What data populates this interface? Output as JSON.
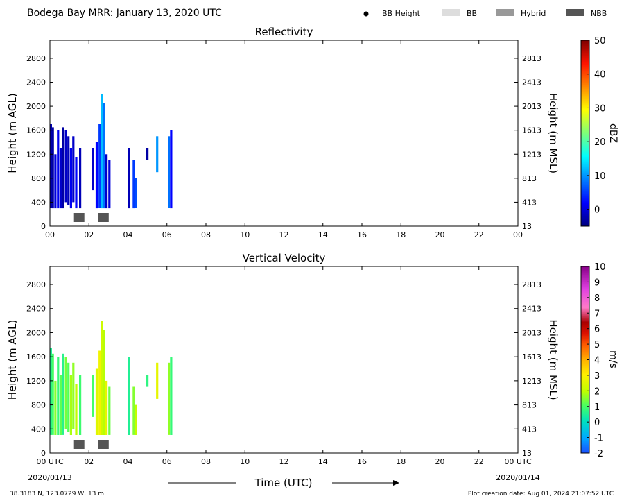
{
  "header": {
    "title": "Bodega Bay MRR:  January 13, 2020 UTC",
    "legend": [
      {
        "label": "BB Height",
        "kind": "dot",
        "color": "#000000"
      },
      {
        "label": "BB",
        "kind": "box",
        "color": "#dddddd"
      },
      {
        "label": "Hybrid",
        "kind": "box",
        "color": "#999999"
      },
      {
        "label": "NBB",
        "kind": "box",
        "color": "#555555"
      }
    ]
  },
  "footer": {
    "location": "38.3183 N, 123.0729 W, 13 m",
    "created": "Plot creation date: Aug 01, 2024 21:07:52 UTC",
    "xlabel": "Time (UTC)",
    "start_date": "2020/01/13",
    "end_date": "2020/01/14"
  },
  "chart_data": [
    {
      "type": "heatmap",
      "title": "Reflectivity",
      "xlabel": "",
      "ylabel": "Height (m AGL)",
      "ylabel_right": "Height (m MSL)",
      "xlim": [
        0,
        24
      ],
      "ylim": [
        0,
        3100
      ],
      "x_ticks": [
        "00",
        "02",
        "04",
        "06",
        "08",
        "10",
        "12",
        "14",
        "16",
        "18",
        "20",
        "22",
        "00"
      ],
      "y_ticks": [
        0,
        400,
        800,
        1200,
        1600,
        2000,
        2400,
        2800
      ],
      "y_ticks_right": [
        "13",
        "413",
        "813",
        "1213",
        "1613",
        "2013",
        "2413",
        "2813"
      ],
      "colorbar": {
        "label": "dBZ",
        "min": -5,
        "max": 50,
        "ticks": [
          0,
          10,
          20,
          30,
          40,
          50
        ]
      },
      "columns": [
        {
          "t": 0.05,
          "bottom": 300,
          "top": 1700,
          "value": -2
        },
        {
          "t": 0.15,
          "bottom": 300,
          "top": 1650,
          "value": -3
        },
        {
          "t": 0.28,
          "bottom": 300,
          "top": 1200,
          "value": 0
        },
        {
          "t": 0.42,
          "bottom": 300,
          "top": 1600,
          "value": 1
        },
        {
          "t": 0.55,
          "bottom": 300,
          "top": 1300,
          "value": -1
        },
        {
          "t": 0.68,
          "bottom": 300,
          "top": 1650,
          "value": -3
        },
        {
          "t": 0.82,
          "bottom": 400,
          "top": 1600,
          "value": -1
        },
        {
          "t": 0.95,
          "bottom": 350,
          "top": 1500,
          "value": -2
        },
        {
          "t": 1.08,
          "bottom": 300,
          "top": 1300,
          "value": 1
        },
        {
          "t": 1.2,
          "bottom": 400,
          "top": 1500,
          "value": -1
        },
        {
          "t": 1.35,
          "bottom": 300,
          "top": 1150,
          "value": 2
        },
        {
          "t": 1.55,
          "bottom": 300,
          "top": 1300,
          "value": -2
        },
        {
          "t": 2.2,
          "bottom": 600,
          "top": 1300,
          "value": -1
        },
        {
          "t": 2.4,
          "bottom": 300,
          "top": 1400,
          "value": 2
        },
        {
          "t": 2.55,
          "bottom": 300,
          "top": 1700,
          "value": 5
        },
        {
          "t": 2.68,
          "bottom": 300,
          "top": 2200,
          "value": 12
        },
        {
          "t": 2.78,
          "bottom": 300,
          "top": 2050,
          "value": 8
        },
        {
          "t": 2.9,
          "bottom": 300,
          "top": 1200,
          "value": -1
        },
        {
          "t": 3.05,
          "bottom": 300,
          "top": 1100,
          "value": 0
        },
        {
          "t": 4.05,
          "bottom": 300,
          "top": 1300,
          "value": -2
        },
        {
          "t": 4.3,
          "bottom": 300,
          "top": 1100,
          "value": 5
        },
        {
          "t": 4.4,
          "bottom": 300,
          "top": 800,
          "value": 6
        },
        {
          "t": 5.0,
          "bottom": 1100,
          "top": 1300,
          "value": -3
        },
        {
          "t": 5.5,
          "bottom": 900,
          "top": 1500,
          "value": 10
        },
        {
          "t": 6.1,
          "bottom": 300,
          "top": 1500,
          "value": 8
        },
        {
          "t": 6.22,
          "bottom": 300,
          "top": 1600,
          "value": 2
        }
      ],
      "nbb_blocks": [
        1.5,
        2.75
      ]
    },
    {
      "type": "heatmap",
      "title": "Vertical Velocity",
      "xlabel": "Time (UTC)",
      "ylabel": "Height (m AGL)",
      "ylabel_right": "Height (m MSL)",
      "xlim": [
        0,
        24
      ],
      "ylim": [
        0,
        3100
      ],
      "x_ticks": [
        "00 UTC",
        "02",
        "04",
        "06",
        "08",
        "10",
        "12",
        "14",
        "16",
        "18",
        "20",
        "22",
        "00 UTC"
      ],
      "y_ticks": [
        0,
        400,
        800,
        1200,
        1600,
        2000,
        2400,
        2800
      ],
      "y_ticks_right": [
        "13",
        "413",
        "813",
        "1213",
        "1613",
        "2013",
        "2413",
        "2813"
      ],
      "colorbar": {
        "label": "m/s",
        "min": -2,
        "max": 10,
        "ticks": [
          -2,
          -1,
          0,
          1,
          2,
          3,
          4,
          5,
          6,
          7,
          8,
          9,
          10
        ]
      },
      "columns": [
        {
          "t": 0.05,
          "bottom": 300,
          "top": 1750,
          "value": 0.5
        },
        {
          "t": 0.15,
          "bottom": 300,
          "top": 1650,
          "value": 1.0
        },
        {
          "t": 0.28,
          "bottom": 300,
          "top": 1200,
          "value": 1.5
        },
        {
          "t": 0.42,
          "bottom": 300,
          "top": 1600,
          "value": 0.8
        },
        {
          "t": 0.55,
          "bottom": 300,
          "top": 1300,
          "value": 1.2
        },
        {
          "t": 0.68,
          "bottom": 300,
          "top": 1650,
          "value": 0.6
        },
        {
          "t": 0.82,
          "bottom": 400,
          "top": 1600,
          "value": 1.4
        },
        {
          "t": 0.95,
          "bottom": 350,
          "top": 1500,
          "value": 1.1
        },
        {
          "t": 1.08,
          "bottom": 300,
          "top": 1300,
          "value": 1.8
        },
        {
          "t": 1.2,
          "bottom": 400,
          "top": 1500,
          "value": 1.6
        },
        {
          "t": 1.35,
          "bottom": 300,
          "top": 1150,
          "value": 2.0
        },
        {
          "t": 1.55,
          "bottom": 300,
          "top": 1300,
          "value": 0.9
        },
        {
          "t": 2.2,
          "bottom": 600,
          "top": 1300,
          "value": 1.0
        },
        {
          "t": 2.4,
          "bottom": 300,
          "top": 1400,
          "value": 2.5
        },
        {
          "t": 2.55,
          "bottom": 300,
          "top": 1700,
          "value": 2.8
        },
        {
          "t": 2.68,
          "bottom": 300,
          "top": 2200,
          "value": 2.2
        },
        {
          "t": 2.78,
          "bottom": 300,
          "top": 2050,
          "value": 1.9
        },
        {
          "t": 2.9,
          "bottom": 300,
          "top": 1200,
          "value": 2.6
        },
        {
          "t": 3.05,
          "bottom": 300,
          "top": 1100,
          "value": 1.3
        },
        {
          "t": 4.05,
          "bottom": 300,
          "top": 1600,
          "value": 0.5
        },
        {
          "t": 4.3,
          "bottom": 300,
          "top": 1100,
          "value": 1.5
        },
        {
          "t": 4.4,
          "bottom": 300,
          "top": 800,
          "value": 2.0
        },
        {
          "t": 5.0,
          "bottom": 1100,
          "top": 1300,
          "value": 0.7
        },
        {
          "t": 5.5,
          "bottom": 900,
          "top": 1500,
          "value": 2.6
        },
        {
          "t": 6.1,
          "bottom": 300,
          "top": 1500,
          "value": 1.6
        },
        {
          "t": 6.22,
          "bottom": 300,
          "top": 1600,
          "value": 0.8
        }
      ],
      "nbb_blocks": [
        1.5,
        2.75
      ]
    }
  ]
}
